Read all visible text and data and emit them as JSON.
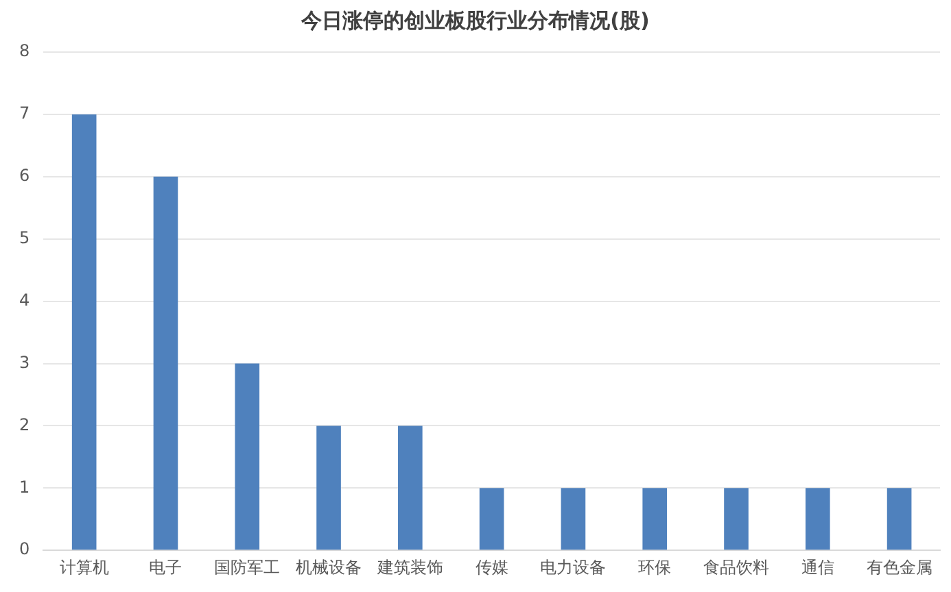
{
  "chart_data": {
    "type": "bar",
    "title": "今日涨停的创业板股行业分布情况(股)",
    "categories": [
      "计算机",
      "电子",
      "国防军工",
      "机械设备",
      "建筑装饰",
      "传媒",
      "电力设备",
      "环保",
      "食品饮料",
      "通信",
      "有色金属"
    ],
    "values": [
      7,
      6,
      3,
      2,
      2,
      1,
      1,
      1,
      1,
      1,
      1
    ],
    "color": "#4f81bd",
    "ylim": [
      0,
      8
    ],
    "yticks": [
      0,
      1,
      2,
      3,
      4,
      5,
      6,
      7,
      8
    ],
    "grid": "y"
  }
}
